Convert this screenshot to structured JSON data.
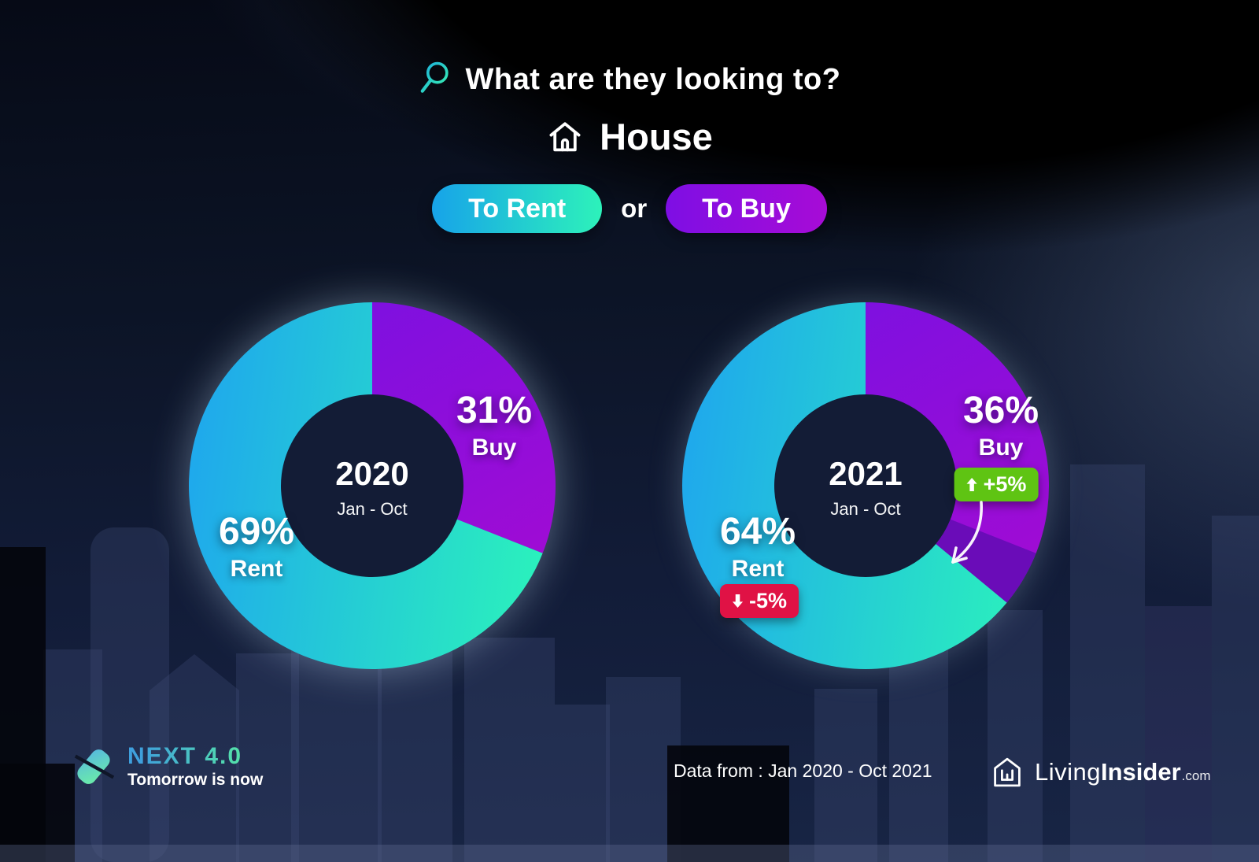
{
  "header": {
    "question": "What are they looking to?",
    "category": "House",
    "conjunction": "or",
    "options": [
      {
        "label": "To Rent",
        "colors": [
          "#17a3e9",
          "#2df2ba"
        ]
      },
      {
        "label": "To Buy",
        "colors": [
          "#7e0ee4",
          "#a70cd6"
        ]
      }
    ]
  },
  "chart_data": [
    {
      "type": "pie",
      "donut": true,
      "title": "2020",
      "subtitle": "Jan - Oct",
      "start_angle": "12 o'clock",
      "direction": "clockwise",
      "slices": [
        {
          "label": "Buy",
          "value": 31,
          "display": "31%",
          "colors": [
            "#7d10e0",
            "#a80bd1"
          ]
        },
        {
          "label": "Rent",
          "value": 69,
          "display": "69%",
          "colors": [
            "#1fa9ec",
            "#2bf3bb"
          ]
        }
      ]
    },
    {
      "type": "pie",
      "donut": true,
      "title": "2021",
      "subtitle": "Jan - Oct",
      "start_angle": "12 o'clock",
      "direction": "clockwise",
      "slices": [
        {
          "label": "Buy",
          "value": 36,
          "display": "36%",
          "colors": [
            "#7d10e0",
            "#a80bd1"
          ],
          "delta": {
            "text": "+5%",
            "direction": "up",
            "badge_color": "#5fc413"
          }
        },
        {
          "label": "Rent",
          "value": 64,
          "display": "64%",
          "colors": [
            "#1fa9ec",
            "#2bf3bb"
          ],
          "delta": {
            "text": "-5%",
            "direction": "down",
            "badge_color": "#e01245"
          }
        }
      ],
      "highlight_wedge": {
        "from_pct": 31,
        "to_pct": 36,
        "color": "#6a0cb8"
      }
    }
  ],
  "footer": {
    "data_range": "Data from : Jan 2020 - Oct 2021",
    "next_brand": {
      "name": "NEXT 4.0",
      "tagline": "Tomorrow is now"
    },
    "living_brand": {
      "word1": "Living",
      "word2": "Insider",
      "suffix": ".com"
    }
  },
  "colors": {
    "donut_hole": "#131c36",
    "background_top": "#000000",
    "background_bottom": "#182545",
    "text": "#ffffff"
  }
}
